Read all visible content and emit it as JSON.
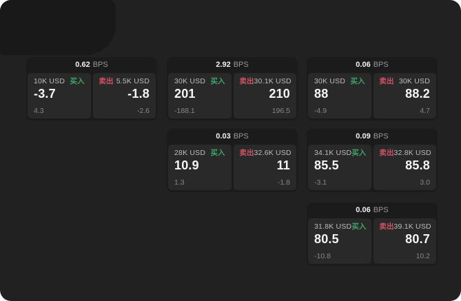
{
  "labels": {
    "bps": "BPS",
    "buy": "买入",
    "sell": "卖出"
  },
  "colors": {
    "screen_background": "#212121",
    "card_background": "#1b1b1b",
    "panel_background": "#292929",
    "buy_green": "#3fa469",
    "sell_red": "#ce5365",
    "primary_text": "#f5f5f5",
    "muted_text": "#878787"
  },
  "cards": [
    {
      "bps": "0.62",
      "buy": {
        "amount": "10K USD",
        "price": "-3.7",
        "delta": "4.3"
      },
      "sell": {
        "amount": "5.5K USD",
        "price": "-1.8",
        "delta": "-2.6"
      }
    },
    {
      "bps": "2.92",
      "buy": {
        "amount": "30K USD",
        "price": "201",
        "delta": "-188.1"
      },
      "sell": {
        "amount": "30.1K USD",
        "price": "210",
        "delta": "196.5"
      }
    },
    {
      "bps": "0.06",
      "buy": {
        "amount": "30K USD",
        "price": "88",
        "delta": "-4.9"
      },
      "sell": {
        "amount": "30K USD",
        "price": "88.2",
        "delta": "4.7"
      }
    },
    {
      "bps": "0.03",
      "buy": {
        "amount": "28K USD",
        "price": "10.9",
        "delta": "1.3"
      },
      "sell": {
        "amount": "32.6K USD",
        "price": "11",
        "delta": "-1.8"
      }
    },
    {
      "bps": "0.09",
      "buy": {
        "amount": "34.1K USD",
        "price": "85.5",
        "delta": "-3.1"
      },
      "sell": {
        "amount": "32.8K USD",
        "price": "85.8",
        "delta": "3.0"
      }
    },
    {
      "bps": "0.06",
      "buy": {
        "amount": "31.8K USD",
        "price": "80.5",
        "delta": "-10.8"
      },
      "sell": {
        "amount": "39.1K USD",
        "price": "80.7",
        "delta": "10.2"
      }
    }
  ]
}
